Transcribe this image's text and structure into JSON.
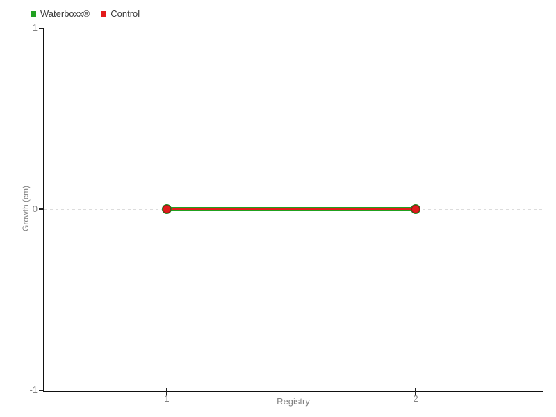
{
  "chart_data": {
    "type": "line",
    "title": "",
    "xlabel": "Registry",
    "ylabel": "Growth (cm)",
    "x": [
      1,
      2
    ],
    "series": [
      {
        "name": "Waterboxx®",
        "color": "#21a121",
        "values": [
          0,
          0
        ]
      },
      {
        "name": "Control",
        "color": "#e31b1b",
        "values": [
          0,
          0
        ]
      }
    ],
    "xlim": [
      0.5,
      2.5
    ],
    "ylim": [
      -1,
      1
    ],
    "x_tick_labels": [
      "1",
      "2"
    ],
    "y_tick_labels": [
      "1",
      "0",
      "-1"
    ],
    "grid": "dashed",
    "grid_color": "#dcdcdc",
    "axis_color": "#111111",
    "tick_label_color": "#828282",
    "legend_position": "top-left",
    "marker_style": "filled-circle"
  }
}
